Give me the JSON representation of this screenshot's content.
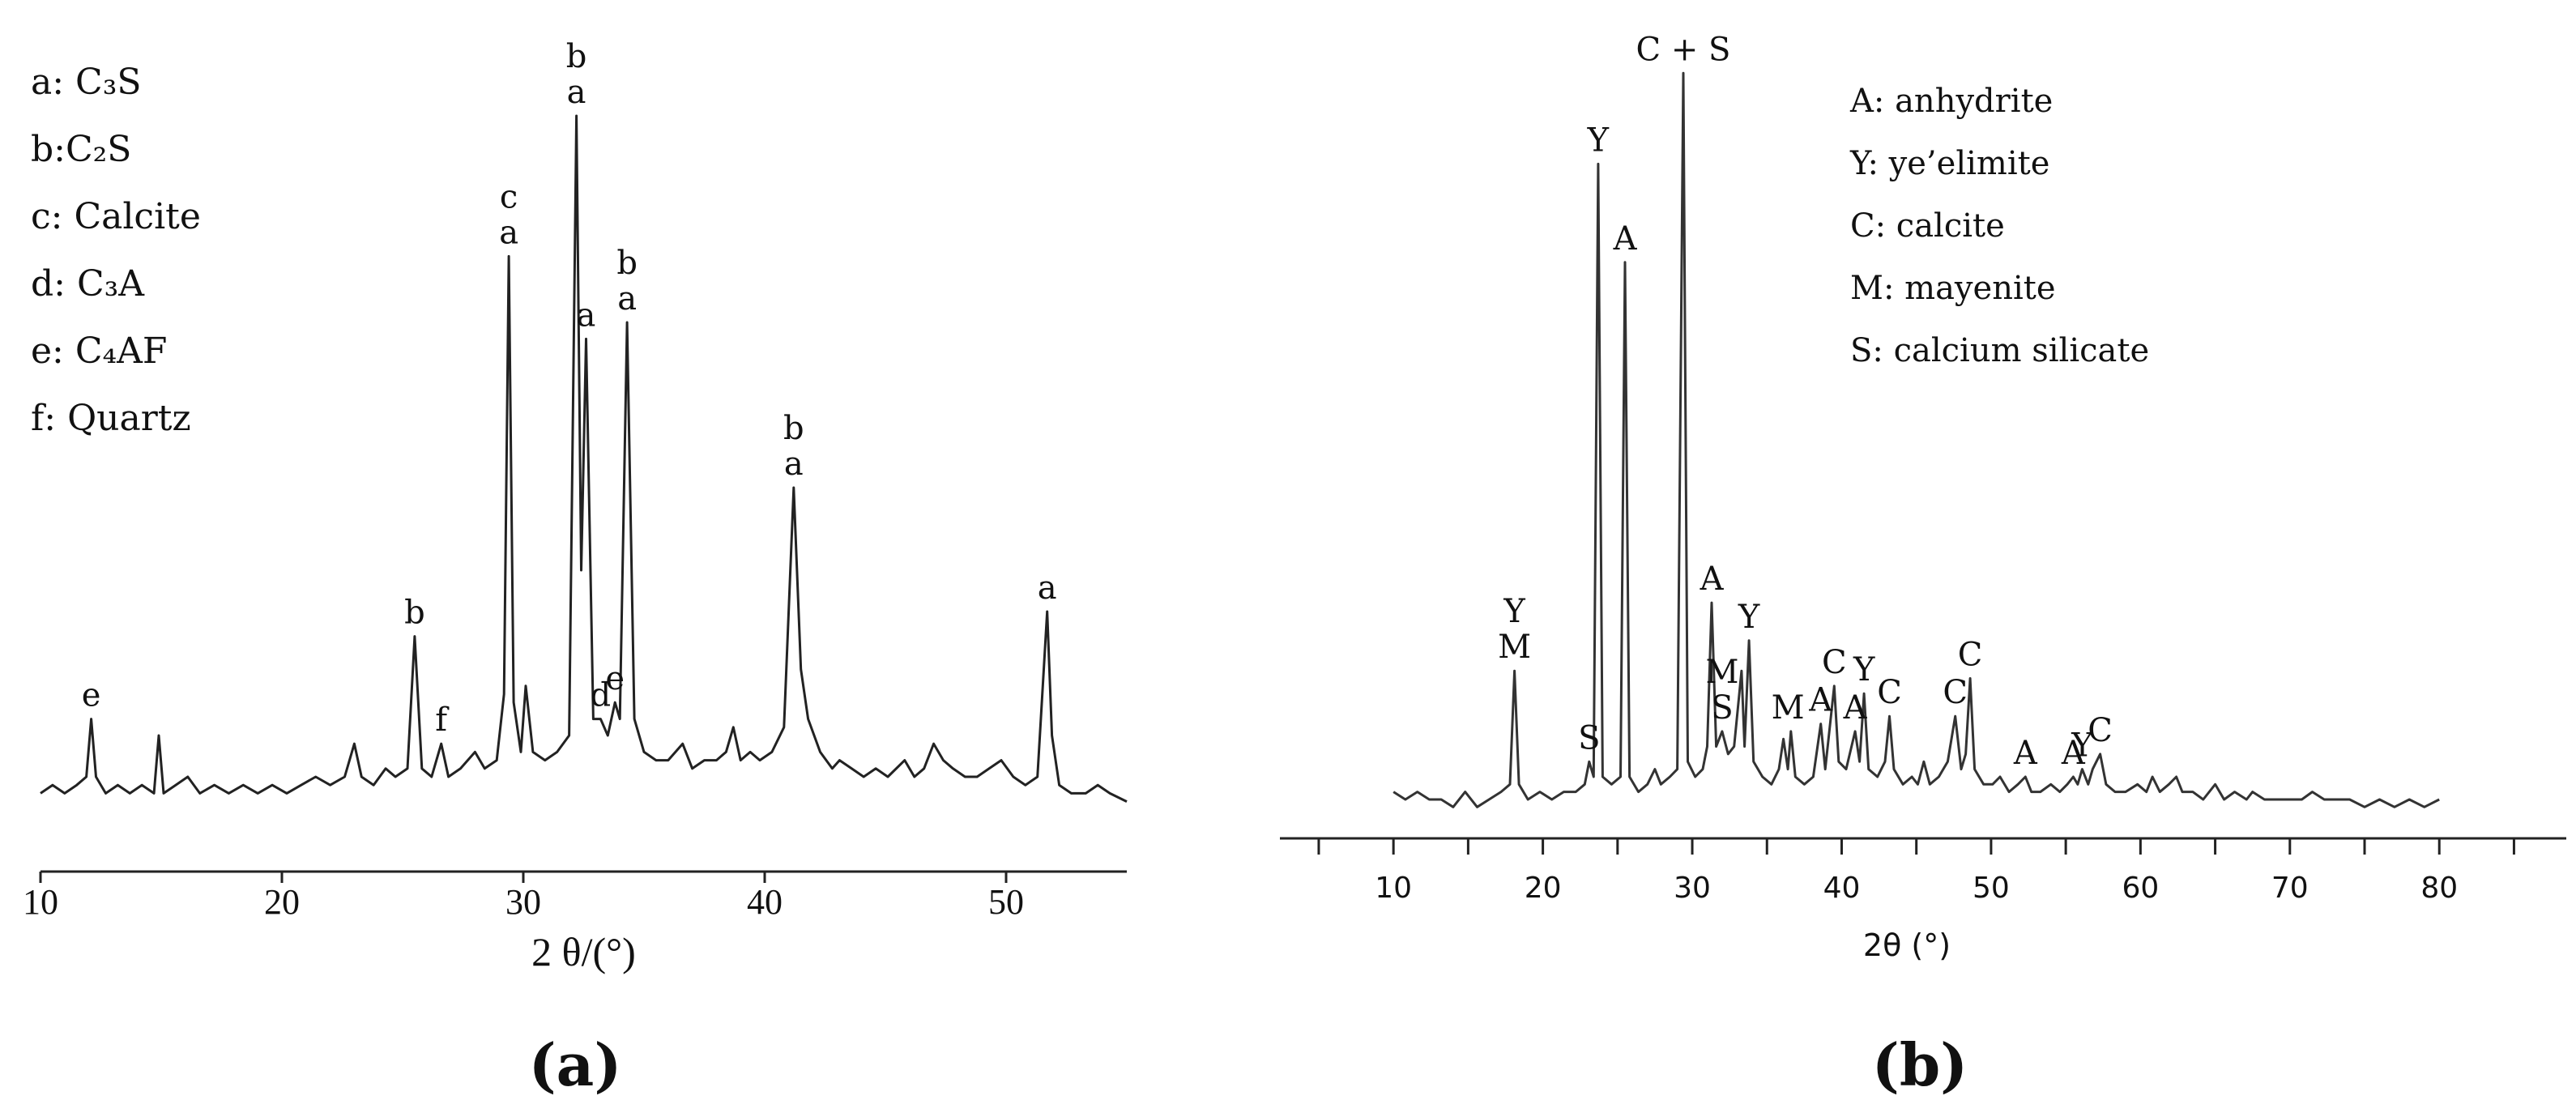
{
  "chart_data": [
    {
      "type": "line",
      "panel_label": "(a)",
      "xlabel": "2 θ/(°)",
      "xlim": [
        10,
        55
      ],
      "xticks": [
        10,
        20,
        30,
        40,
        50
      ],
      "ylim": [
        0,
        100
      ],
      "color": "#222222",
      "legend_items": [
        "a: C₃S",
        "b:C₂S",
        "c: Calcite",
        "d: C₃A",
        "e: C₄AF",
        "f: Quartz"
      ],
      "series": [
        {
          "name": null,
          "color": "#222222",
          "x": [
            10,
            10.5,
            11,
            11.5,
            11.9,
            12.1,
            12.3,
            12.7,
            13.2,
            13.7,
            14.2,
            14.7,
            14.9,
            15.1,
            15.6,
            16.1,
            16.6,
            17.2,
            17.8,
            18.4,
            19,
            19.6,
            20.2,
            20.8,
            21.4,
            22,
            22.6,
            23,
            23.3,
            23.8,
            24.3,
            24.7,
            25.2,
            25.5,
            25.8,
            26.2,
            26.6,
            26.9,
            27.4,
            28,
            28.4,
            28.9,
            29.2,
            29.4,
            29.6,
            29.9,
            30.1,
            30.4,
            30.9,
            31.4,
            31.9,
            32.2,
            32.4,
            32.6,
            32.9,
            33.2,
            33.5,
            33.8,
            34.0,
            34.3,
            34.6,
            35,
            35.5,
            36,
            36.6,
            37,
            37.5,
            38,
            38.4,
            38.7,
            39,
            39.4,
            39.8,
            40.3,
            40.8,
            41.2,
            41.5,
            41.8,
            42.3,
            42.8,
            43.1,
            43.6,
            44.1,
            44.6,
            45.1,
            45.8,
            46.2,
            46.6,
            47,
            47.4,
            47.8,
            48.3,
            48.8,
            49.3,
            49.8,
            50.3,
            50.8,
            51.3,
            51.6,
            51.7,
            51.9,
            52.2,
            52.7,
            53.3,
            53.8,
            54.3,
            55
          ],
          "values": [
            3,
            4,
            3,
            4,
            5,
            12,
            5,
            3,
            4,
            3,
            4,
            3,
            10,
            3,
            4,
            5,
            3,
            4,
            3,
            4,
            3,
            4,
            3,
            4,
            5,
            4,
            5,
            9,
            5,
            4,
            6,
            5,
            6,
            22,
            6,
            5,
            9,
            5,
            6,
            8,
            6,
            7,
            15,
            68,
            14,
            8,
            16,
            8,
            7,
            8,
            10,
            85,
            30,
            58,
            12,
            12,
            10,
            14,
            12,
            60,
            12,
            8,
            7,
            7,
            9,
            6,
            7,
            7,
            8,
            11,
            7,
            8,
            7,
            8,
            11,
            40,
            18,
            12,
            8,
            6,
            7,
            6,
            5,
            6,
            5,
            7,
            5,
            6,
            9,
            7,
            6,
            5,
            5,
            6,
            7,
            5,
            4,
            5,
            20,
            25,
            10,
            4,
            3,
            3,
            4,
            3,
            2
          ]
        }
      ],
      "annotations": [
        {
          "x": 12.1,
          "labels": [
            "e"
          ]
        },
        {
          "x": 25.5,
          "labels": [
            "b"
          ]
        },
        {
          "x": 26.6,
          "labels": [
            "f"
          ]
        },
        {
          "x": 29.4,
          "labels": [
            "c",
            "a"
          ]
        },
        {
          "x": 32.2,
          "labels": [
            "b",
            "a"
          ]
        },
        {
          "x": 32.6,
          "labels": [
            "a"
          ]
        },
        {
          "x": 33.2,
          "labels": [
            "d"
          ]
        },
        {
          "x": 33.8,
          "labels": [
            "e"
          ]
        },
        {
          "x": 34.3,
          "labels": [
            "b",
            "a"
          ]
        },
        {
          "x": 41.2,
          "labels": [
            "b",
            "a"
          ]
        },
        {
          "x": 51.7,
          "labels": [
            "a"
          ]
        }
      ]
    },
    {
      "type": "line",
      "panel_label": "(b)",
      "xlabel": "2θ (°)",
      "xlim": [
        2.4,
        88.5
      ],
      "xticks": [
        10,
        20,
        30,
        40,
        50,
        60,
        70,
        80
      ],
      "xminor_ticks": [
        5,
        15,
        25,
        35,
        45,
        55,
        65,
        75,
        85
      ],
      "ylim": [
        0,
        100
      ],
      "color": "#333333",
      "legend_items": [
        "A: anhydrite",
        "Y: ye’elimite",
        "C: calcite",
        "M: mayenite",
        "S: calcium silicate"
      ],
      "series": [
        {
          "name": null,
          "color": "#333333",
          "x": [
            10,
            10.8,
            11.6,
            12.4,
            13.2,
            14,
            14.8,
            15.6,
            16.4,
            17.2,
            17.8,
            18.1,
            18.4,
            19,
            19.8,
            20.6,
            21.4,
            22.2,
            22.8,
            23.1,
            23.4,
            23.7,
            24,
            24.6,
            25.2,
            25.5,
            25.8,
            26.4,
            27,
            27.5,
            27.9,
            28.5,
            29,
            29.4,
            29.7,
            30.2,
            30.7,
            31,
            31.3,
            31.6,
            32,
            32.4,
            32.8,
            33.3,
            33.5,
            33.8,
            34.1,
            34.7,
            35.3,
            35.8,
            36.1,
            36.4,
            36.6,
            36.9,
            37.5,
            38.1,
            38.6,
            38.9,
            39.5,
            39.8,
            40.3,
            40.9,
            41.2,
            41.5,
            41.8,
            42.4,
            42.9,
            43.2,
            43.5,
            44.1,
            44.7,
            45.1,
            45.5,
            45.9,
            46.5,
            47.1,
            47.6,
            48,
            48.3,
            48.6,
            48.9,
            49.5,
            50.1,
            50.6,
            51.2,
            51.8,
            52.3,
            52.7,
            53.3,
            54,
            54.6,
            55.1,
            55.5,
            55.8,
            56.1,
            56.5,
            56.8,
            57.3,
            57.7,
            58.3,
            59,
            59.8,
            60.4,
            60.8,
            61.3,
            61.9,
            62.4,
            62.8,
            63.5,
            64.2,
            65,
            65.6,
            66.3,
            67.1,
            67.5,
            68.3,
            69.1,
            70,
            70.8,
            71.5,
            72.3,
            73.1,
            74,
            75,
            76,
            77,
            78,
            79,
            80
          ],
          "values": [
            4,
            3,
            4,
            3,
            3,
            2,
            4,
            2,
            3,
            4,
            5,
            20,
            5,
            3,
            4,
            3,
            4,
            4,
            5,
            8,
            6,
            87,
            6,
            5,
            6,
            74,
            6,
            4,
            5,
            7,
            5,
            6,
            7,
            99,
            8,
            6,
            7,
            10,
            29,
            10,
            12,
            9,
            10,
            20,
            10,
            24,
            8,
            6,
            5,
            7,
            11,
            7,
            12,
            6,
            5,
            6,
            13,
            7,
            18,
            8,
            7,
            12,
            8,
            17,
            7,
            6,
            8,
            14,
            7,
            5,
            6,
            5,
            8,
            5,
            6,
            8,
            14,
            7,
            9,
            19,
            7,
            5,
            5,
            6,
            4,
            5,
            6,
            4,
            4,
            5,
            4,
            5,
            6,
            5,
            7,
            5,
            7,
            9,
            5,
            4,
            4,
            5,
            4,
            6,
            4,
            5,
            6,
            4,
            4,
            3,
            5,
            3,
            4,
            3,
            4,
            3,
            3,
            3,
            3,
            4,
            3,
            3,
            3,
            2,
            3,
            2,
            3,
            2,
            3
          ]
        }
      ],
      "annotations": [
        {
          "x": 18.1,
          "labels": [
            "Y",
            "M"
          ]
        },
        {
          "x": 23.1,
          "labels": [
            "S"
          ]
        },
        {
          "x": 23.7,
          "labels": [
            "Y"
          ]
        },
        {
          "x": 25.5,
          "labels": [
            "A"
          ]
        },
        {
          "x": 29.4,
          "labels": [
            "C + S"
          ]
        },
        {
          "x": 31.3,
          "labels": [
            "A"
          ]
        },
        {
          "x": 32,
          "labels": [
            "M",
            "S"
          ]
        },
        {
          "x": 33.8,
          "labels": [
            "Y"
          ]
        },
        {
          "x": 36.4,
          "labels": [
            "M"
          ]
        },
        {
          "x": 38.6,
          "labels": [
            "A"
          ]
        },
        {
          "x": 39.5,
          "labels": [
            "C"
          ]
        },
        {
          "x": 40.9,
          "labels": [
            "A"
          ]
        },
        {
          "x": 41.5,
          "labels": [
            "Y"
          ]
        },
        {
          "x": 43.2,
          "labels": [
            "C"
          ]
        },
        {
          "x": 47.6,
          "labels": [
            "C"
          ]
        },
        {
          "x": 48.6,
          "labels": [
            "C"
          ]
        },
        {
          "x": 52.3,
          "labels": [
            "A"
          ]
        },
        {
          "x": 55.5,
          "labels": [
            "A"
          ]
        },
        {
          "x": 56.1,
          "labels": [
            "Y"
          ]
        },
        {
          "x": 57.3,
          "labels": [
            "C"
          ]
        }
      ]
    }
  ]
}
